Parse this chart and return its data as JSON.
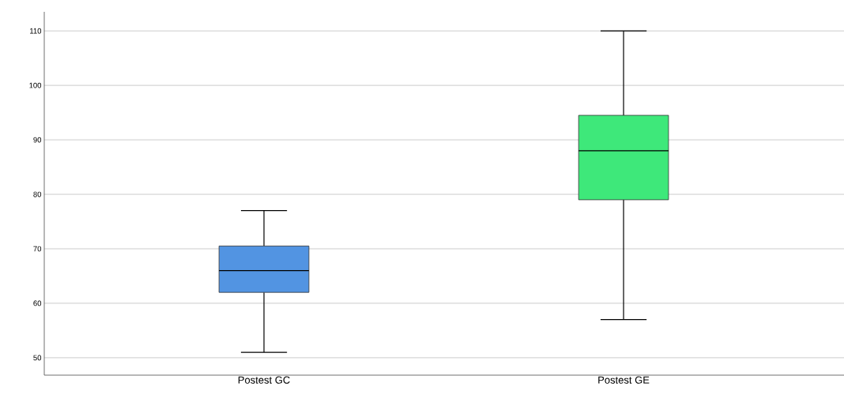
{
  "chart_data": {
    "type": "box",
    "categories": [
      "Postest GC",
      "Postest GE"
    ],
    "boxes": [
      {
        "low": 51,
        "q1": 62,
        "median": 66,
        "q3": 70.5,
        "high": 77
      },
      {
        "low": 57,
        "q1": 79,
        "median": 88,
        "q3": 94.5,
        "high": 110
      }
    ],
    "colors": [
      "#5294e2",
      "#3ee87a"
    ],
    "ylim": [
      46.8,
      113.5
    ],
    "yticks": [
      50,
      60,
      70,
      80,
      90,
      100,
      110
    ],
    "grid": "y"
  }
}
